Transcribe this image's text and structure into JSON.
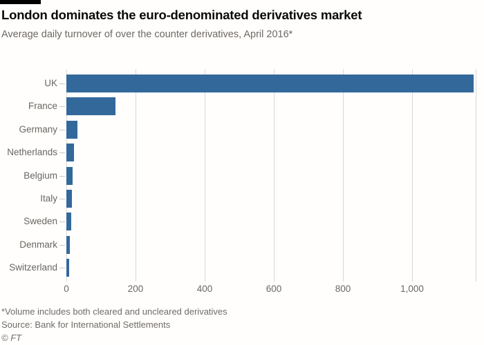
{
  "header": {
    "title": "London dominates the euro-denominated derivatives market",
    "subtitle": "Average daily turnover of over the counter derivatives, April 2016*"
  },
  "chart_data": {
    "type": "bar",
    "orientation": "horizontal",
    "title": "London dominates the euro-denominated derivatives market",
    "subtitle": "Average daily turnover of over the counter derivatives, April 2016*",
    "categories": [
      "UK",
      "France",
      "Germany",
      "Netherlands",
      "Belgium",
      "Italy",
      "Sweden",
      "Denmark",
      "Switzerland"
    ],
    "values": [
      1178,
      142,
      32,
      22,
      18,
      15,
      14,
      10,
      8
    ],
    "xlim": [
      0,
      1184
    ],
    "x_ticks": [
      {
        "label": "0",
        "value": 0
      },
      {
        "label": "200",
        "value": 200
      },
      {
        "label": "400",
        "value": 400
      },
      {
        "label": "600",
        "value": 600
      },
      {
        "label": "800",
        "value": 800
      },
      {
        "label": "1,000",
        "value": 1000
      }
    ],
    "grid": "vertical-gridlines-only",
    "legend": "none",
    "bar_color": "#33689b",
    "gridline_color": "#dbd8d5",
    "label_color": "#6b6560"
  },
  "footer": {
    "note": "*Volume includes both cleared and uncleared derivatives",
    "source": "Source: Bank for International Settlements",
    "copyright": "© FT"
  }
}
